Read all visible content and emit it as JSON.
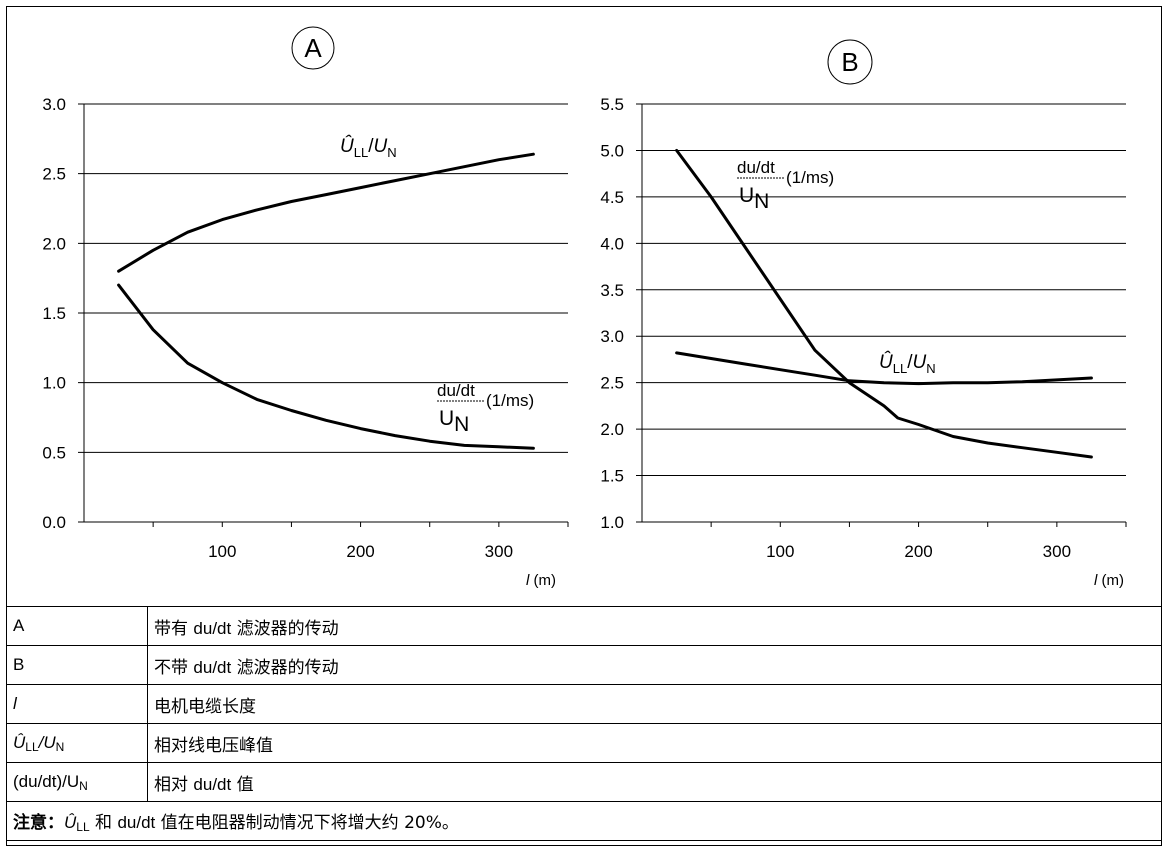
{
  "chart_data": [
    {
      "type": "line",
      "panel_label": "A",
      "ylim": [
        0.0,
        3.0
      ],
      "yticks": [
        "3.0",
        "2.5",
        "2.0",
        "1.5",
        "1.0",
        "0.5",
        "0.0"
      ],
      "xlim": [
        0,
        350
      ],
      "xticks": [
        "100",
        "200",
        "300"
      ],
      "xlabel_var": "l",
      "xlabel_unit": "(m)",
      "grid": true,
      "series": [
        {
          "name": "Û_LL/U_N",
          "x": [
            25,
            50,
            75,
            100,
            125,
            150,
            175,
            200,
            225,
            250,
            275,
            300,
            325
          ],
          "y": [
            1.8,
            1.95,
            2.08,
            2.17,
            2.24,
            2.3,
            2.35,
            2.4,
            2.45,
            2.5,
            2.55,
            2.6,
            2.64
          ]
        },
        {
          "name": "(du/dt)/U_N (1/ms)",
          "x": [
            25,
            50,
            75,
            100,
            125,
            150,
            175,
            200,
            225,
            250,
            275,
            300,
            325
          ],
          "y": [
            1.7,
            1.38,
            1.14,
            1.0,
            0.88,
            0.8,
            0.73,
            0.67,
            0.62,
            0.58,
            0.55,
            0.54,
            0.53
          ]
        }
      ],
      "annotations": {
        "peak_main": "Û",
        "peak_sub": "LL",
        "peak_sep": "/",
        "peak_den": "U",
        "peak_den_sub": "N",
        "rate_num": "du/dt",
        "rate_unit": "(1/ms)",
        "rate_den": "U",
        "rate_den_sub": "N"
      }
    },
    {
      "type": "line",
      "panel_label": "B",
      "ylim": [
        1.0,
        5.5
      ],
      "yticks": [
        "5.5",
        "5.0",
        "4.5",
        "4.0",
        "3.5",
        "3.0",
        "2.5",
        "2.0",
        "1.5",
        "1.0"
      ],
      "xlim": [
        0,
        350
      ],
      "xticks": [
        "100",
        "200",
        "300"
      ],
      "xlabel_var": "l",
      "xlabel_unit": "(m)",
      "grid": true,
      "series": [
        {
          "name": "Û_LL/U_N",
          "x": [
            25,
            50,
            75,
            100,
            125,
            150,
            175,
            200,
            225,
            250,
            275,
            300,
            325
          ],
          "y": [
            2.82,
            2.76,
            2.7,
            2.64,
            2.58,
            2.52,
            2.5,
            2.49,
            2.5,
            2.5,
            2.51,
            2.53,
            2.55
          ]
        },
        {
          "name": "(du/dt)/U_N (1/ms)",
          "x": [
            25,
            50,
            75,
            100,
            125,
            150,
            175,
            185,
            200,
            225,
            250,
            275,
            300,
            325
          ],
          "y": [
            5.0,
            4.5,
            3.95,
            3.4,
            2.85,
            2.5,
            2.25,
            2.12,
            2.05,
            1.92,
            1.85,
            1.8,
            1.75,
            1.7
          ]
        }
      ],
      "annotations": {
        "peak_main": "Û",
        "peak_sub": "LL",
        "peak_sep": "/",
        "peak_den": "U",
        "peak_den_sub": "N",
        "rate_num": "du/dt",
        "rate_unit": "(1/ms)",
        "rate_den": "U",
        "rate_den_sub": "N"
      }
    }
  ],
  "legend": {
    "rows": [
      {
        "key": "A",
        "desc_pre": "带有 ",
        "desc_du": "du/dt",
        "desc_post": " 滤波器的传动"
      },
      {
        "key": "B",
        "desc_pre": "不带 ",
        "desc_du": "du/dt",
        "desc_post": " 滤波器的传动"
      },
      {
        "key": "l",
        "desc": "电机电缆长度"
      },
      {
        "key_main": "Û",
        "key_sub": "LL",
        "key_sep": "/U",
        "key_sub2": "N",
        "desc": "相对线电压峰值"
      },
      {
        "key_main": "(du/dt)/U",
        "key_sub": "N",
        "desc_pre": "相对 ",
        "desc_du": "du/dt",
        "desc_post": " 值"
      }
    ],
    "note": {
      "label": "注意：",
      "u_main": "Û",
      "u_sub": "LL",
      "text_mid": " 和 ",
      "du": "du/dt",
      "text_post": " 值在电阻器制动情况下将增大约 20%。"
    }
  },
  "colors": {
    "line": "#000000",
    "grid": "#000000",
    "background": "#ffffff"
  }
}
